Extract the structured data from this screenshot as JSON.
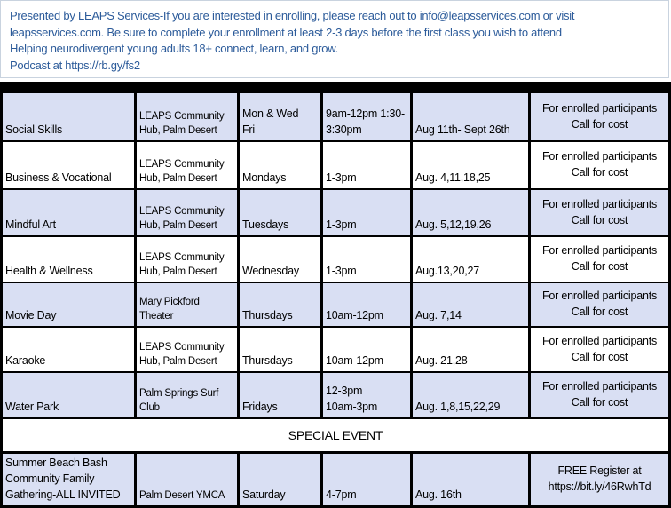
{
  "header": {
    "lines": [
      "Presented by LEAPS Services-If you are interested in enrolling, please reach out to info@leapsservices.com or visit",
      "leapsservices.com. Be sure to complete your enrollment at least 2-3 days before the first class you wish to attend",
      "Helping neurodivergent young adults 18+ connect, learn, and grow.",
      "Podcast at https://rb.gy/fs2"
    ]
  },
  "rows": [
    {
      "program": [
        "Social Skills"
      ],
      "location": [
        "LEAPS Community",
        "Hub,  Palm Desert"
      ],
      "days": [
        "Mon  & Wed",
        "Fri"
      ],
      "time": [
        "9am-12pm  1:30-",
        "3:30pm"
      ],
      "dates": [
        "Aug 11th- Sept 26th"
      ],
      "cost": [
        "For enrolled participants",
        "Call for cost"
      ]
    },
    {
      "program": [
        "Business & Vocational"
      ],
      "location": [
        "LEAPS Community",
        "Hub,  Palm Desert"
      ],
      "days": [
        "Mondays"
      ],
      "time": [
        "1-3pm"
      ],
      "dates": [
        "Aug. 4,11,18,25"
      ],
      "cost": [
        "For enrolled participants",
        "Call for cost"
      ]
    },
    {
      "program": [
        "Mindful Art"
      ],
      "location": [
        "LEAPS Community",
        "Hub,  Palm Desert"
      ],
      "days": [
        "Tuesdays"
      ],
      "time": [
        "1-3pm"
      ],
      "dates": [
        "Aug. 5,12,19,26"
      ],
      "cost": [
        "For enrolled participants",
        "Call for cost"
      ]
    },
    {
      "program": [
        "Health & Wellness"
      ],
      "location": [
        "LEAPS Community",
        "Hub,  Palm Desert"
      ],
      "days": [
        "Wednesday"
      ],
      "time": [
        "1-3pm"
      ],
      "dates": [
        "Aug.13,20,27"
      ],
      "cost": [
        "For enrolled participants",
        "Call for cost"
      ]
    },
    {
      "program": [
        "Movie Day"
      ],
      "location": [
        "Mary Pickford",
        "Theater"
      ],
      "days": [
        "Thursdays"
      ],
      "time": [
        "10am-12pm"
      ],
      "dates": [
        "Aug. 7,14"
      ],
      "cost": [
        "For enrolled participants",
        "Call for cost"
      ]
    },
    {
      "program": [
        "Karaoke"
      ],
      "location": [
        "LEAPS Community",
        "Hub,  Palm Desert"
      ],
      "days": [
        "Thursdays"
      ],
      "time": [
        "10am-12pm"
      ],
      "dates": [
        "Aug. 21,28"
      ],
      "cost": [
        "For enrolled participants",
        "Call for cost"
      ]
    },
    {
      "program": [
        "Water Park"
      ],
      "location": [
        "Palm Springs Surf",
        "Club"
      ],
      "days": [
        "Fridays"
      ],
      "time": [
        "12-3pm",
        "10am-3pm"
      ],
      "dates": [
        "Aug. 1,8,15,22,29"
      ],
      "cost": [
        "For enrolled participants",
        "Call for cost"
      ]
    }
  ],
  "special_event": {
    "banner": "SPECIAL EVENT",
    "program": [
      "Summer Beach Bash",
      "Community Family",
      "Gathering-ALL INVITED"
    ],
    "location": [
      "Palm Desert YMCA"
    ],
    "days": [
      "Saturday"
    ],
    "time": [
      "4-7pm"
    ],
    "dates": [
      "Aug. 16th"
    ],
    "cost": [
      "FREE  Register at",
      "https://bit.ly/46RwhTd"
    ]
  },
  "colors": {
    "header_text": "#2c5b9a",
    "lavender_row": "#d9dff3",
    "white_row": "#ffffff",
    "grid_lines": "#000000"
  }
}
